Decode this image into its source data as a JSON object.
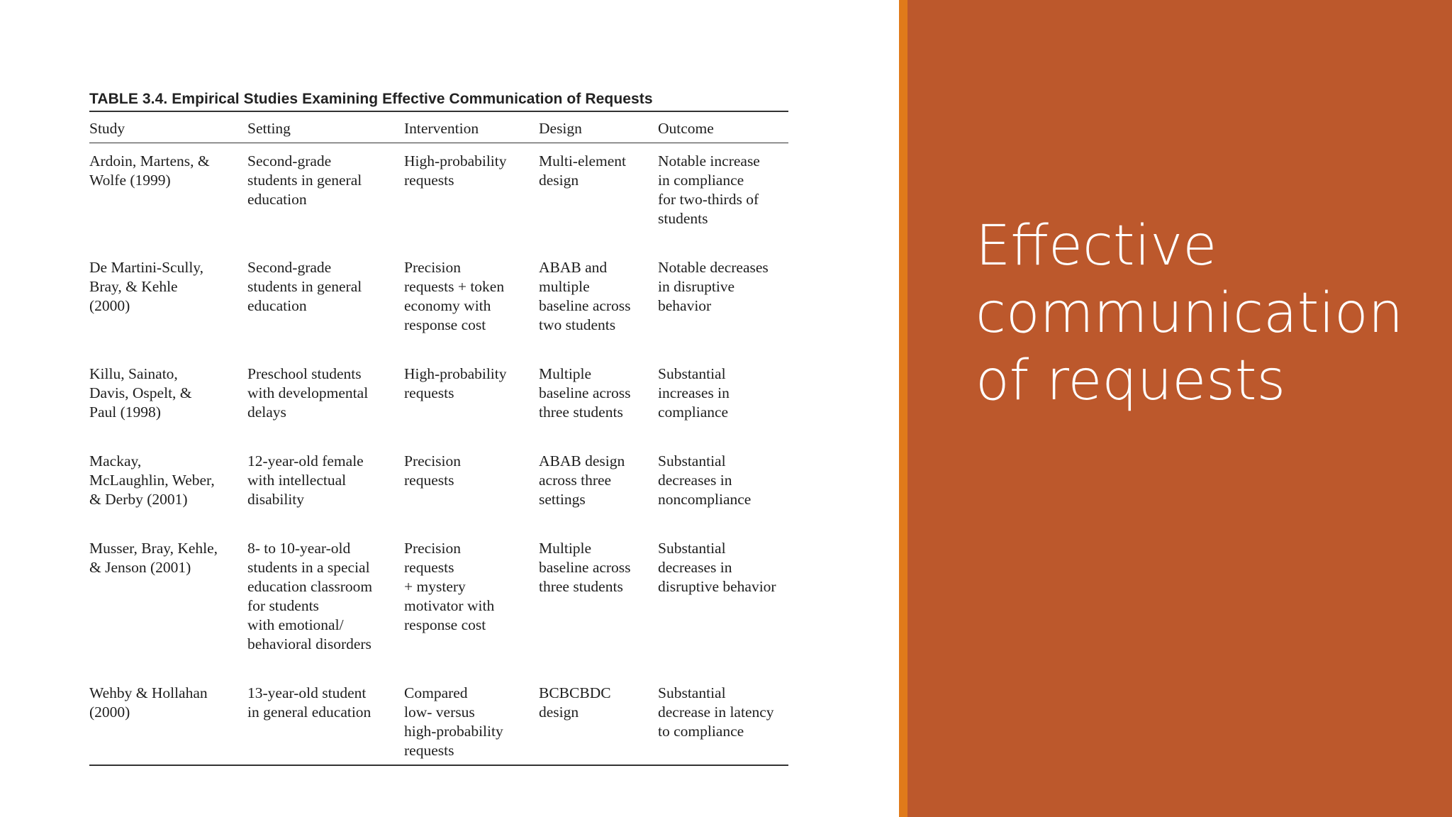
{
  "table": {
    "caption": "TABLE 3.4.  Empirical Studies Examining Effective Communication of Requests",
    "columns": [
      "Study",
      "Setting",
      "Intervention",
      "Design",
      "Outcome"
    ],
    "rows": [
      [
        "Ardoin, Martens, &\nWolfe (1999)",
        "Second-grade\nstudents in general\neducation",
        "High-probability\nrequests",
        "Multi-element\ndesign",
        "Notable increase\nin compliance\nfor two-thirds of\nstudents"
      ],
      [
        "De Martini-Scully,\nBray, & Kehle\n(2000)",
        "Second-grade\nstudents in general\neducation",
        "Precision\nrequests + token\neconomy with\nresponse cost",
        "ABAB and\nmultiple\nbaseline across\ntwo students",
        "Notable decreases\nin disruptive\nbehavior"
      ],
      [
        "Killu, Sainato,\nDavis, Ospelt, &\nPaul (1998)",
        "Preschool students\nwith developmental\ndelays",
        "High-probability\nrequests",
        "Multiple\nbaseline across\nthree students",
        "Substantial\nincreases in\ncompliance"
      ],
      [
        "Mackay,\nMcLaughlin, Weber,\n& Derby (2001)",
        "12-year-old female\nwith intellectual\ndisability",
        "Precision\nrequests",
        "ABAB design\nacross three\nsettings",
        "Substantial\ndecreases in\nnoncompliance"
      ],
      [
        "Musser, Bray, Kehle,\n& Jenson (2001)",
        "8- to 10-year-old\nstudents in a special\neducation classroom\nfor students\nwith emotional/\nbehavioral disorders",
        "Precision\nrequests\n+ mystery\nmotivator with\nresponse cost",
        "Multiple\nbaseline across\nthree students",
        "Substantial\ndecreases in\ndisruptive behavior"
      ],
      [
        "Wehby & Hollahan\n(2000)",
        "13-year-old student\nin general education",
        "Compared\nlow- versus\nhigh-probability\nrequests",
        "BCBCBDC\ndesign",
        "Substantial\ndecrease in latency\nto compliance"
      ]
    ]
  },
  "sidebar": {
    "title": "Effective\ncommunication\nof requests",
    "background_color": "#bc582c",
    "stripe_color": "#e07a1a"
  }
}
